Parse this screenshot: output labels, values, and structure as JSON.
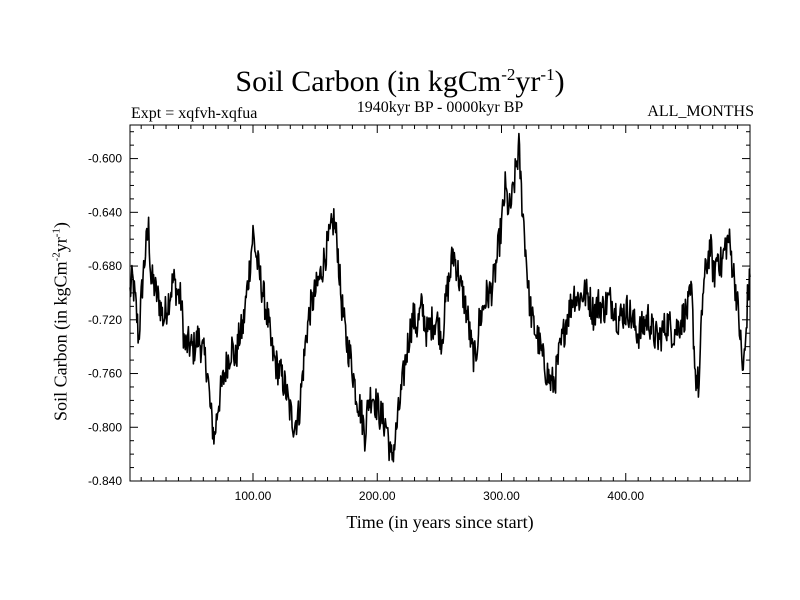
{
  "page": {
    "title_main": "Soil Carbon (in kgCm",
    "title_exp1": "-2",
    "title_mid": "yr",
    "title_exp2": "-1",
    "title_end": ")",
    "subtitle": "1940kyr BP - 0000kyr BP",
    "expt_label": "Expt = xqfvh-xqfua",
    "months_label": "ALL_MONTHS"
  },
  "chart_data": {
    "type": "line",
    "title": "Soil Carbon (in kgCm-2yr-1)",
    "xlabel": "Time (in years since start)",
    "ylabel_main": "Soil Carbon (in kgCm",
    "ylabel_exp1": "-2",
    "ylabel_mid": "yr",
    "ylabel_exp2": "-1",
    "ylabel_end": ")",
    "xlim": [
      1,
      500
    ],
    "ylim": [
      -0.84,
      -0.575
    ],
    "x_ticks": [
      100,
      200,
      300,
      400
    ],
    "x_tick_labels": [
      "100.00",
      "200.00",
      "300.00",
      "400.00"
    ],
    "y_ticks": [
      -0.84,
      -0.8,
      -0.76,
      -0.72,
      -0.68,
      -0.64,
      -0.6
    ],
    "y_tick_labels": [
      "-0.840",
      "-0.800",
      "-0.760",
      "-0.720",
      "-0.680",
      "-0.640",
      "-0.600"
    ],
    "series": [
      {
        "name": "Soil Carbon",
        "color": "#000000",
        "anchors": [
          [
            1,
            -0.7
          ],
          [
            3,
            -0.69
          ],
          [
            6,
            -0.712
          ],
          [
            8,
            -0.735
          ],
          [
            10,
            -0.705
          ],
          [
            12,
            -0.682
          ],
          [
            14,
            -0.665
          ],
          [
            16,
            -0.652
          ],
          [
            18,
            -0.69
          ],
          [
            20,
            -0.693
          ],
          [
            22,
            -0.7
          ],
          [
            25,
            -0.708
          ],
          [
            28,
            -0.72
          ],
          [
            32,
            -0.705
          ],
          [
            36,
            -0.69
          ],
          [
            39,
            -0.7
          ],
          [
            42,
            -0.705
          ],
          [
            45,
            -0.74
          ],
          [
            48,
            -0.738
          ],
          [
            52,
            -0.742
          ],
          [
            56,
            -0.733
          ],
          [
            60,
            -0.745
          ],
          [
            63,
            -0.755
          ],
          [
            66,
            -0.79
          ],
          [
            69,
            -0.808
          ],
          [
            72,
            -0.782
          ],
          [
            75,
            -0.77
          ],
          [
            79,
            -0.752
          ],
          [
            83,
            -0.74
          ],
          [
            86,
            -0.75
          ],
          [
            89,
            -0.732
          ],
          [
            92,
            -0.725
          ],
          [
            95,
            -0.7
          ],
          [
            98,
            -0.675
          ],
          [
            100,
            -0.655
          ],
          [
            103,
            -0.675
          ],
          [
            106,
            -0.69
          ],
          [
            109,
            -0.705
          ],
          [
            112,
            -0.72
          ],
          [
            115,
            -0.742
          ],
          [
            118,
            -0.752
          ],
          [
            122,
            -0.76
          ],
          [
            126,
            -0.77
          ],
          [
            129,
            -0.785
          ],
          [
            133,
            -0.798
          ],
          [
            137,
            -0.79
          ],
          [
            140,
            -0.76
          ],
          [
            143,
            -0.73
          ],
          [
            146,
            -0.712
          ],
          [
            150,
            -0.7
          ],
          [
            154,
            -0.688
          ],
          [
            158,
            -0.672
          ],
          [
            162,
            -0.658
          ],
          [
            165,
            -0.645
          ],
          [
            168,
            -0.665
          ],
          [
            171,
            -0.705
          ],
          [
            175,
            -0.735
          ],
          [
            179,
            -0.75
          ],
          [
            183,
            -0.775
          ],
          [
            187,
            -0.788
          ],
          [
            190,
            -0.805
          ],
          [
            193,
            -0.78
          ],
          [
            196,
            -0.775
          ],
          [
            199,
            -0.782
          ],
          [
            202,
            -0.79
          ],
          [
            205,
            -0.795
          ],
          [
            208,
            -0.8
          ],
          [
            211,
            -0.825
          ],
          [
            214,
            -0.812
          ],
          [
            217,
            -0.79
          ],
          [
            220,
            -0.77
          ],
          [
            223,
            -0.748
          ],
          [
            226,
            -0.73
          ],
          [
            229,
            -0.718
          ],
          [
            232,
            -0.725
          ],
          [
            236,
            -0.71
          ],
          [
            240,
            -0.73
          ],
          [
            244,
            -0.722
          ],
          [
            248,
            -0.72
          ],
          [
            252,
            -0.735
          ],
          [
            256,
            -0.7
          ],
          [
            258,
            -0.69
          ],
          [
            261,
            -0.67
          ],
          [
            264,
            -0.68
          ],
          [
            267,
            -0.695
          ],
          [
            270,
            -0.705
          ],
          [
            273,
            -0.72
          ],
          [
            276,
            -0.742
          ],
          [
            279,
            -0.75
          ],
          [
            282,
            -0.722
          ],
          [
            285,
            -0.712
          ],
          [
            288,
            -0.702
          ],
          [
            291,
            -0.7
          ],
          [
            294,
            -0.69
          ],
          [
            297,
            -0.67
          ],
          [
            300,
            -0.65
          ],
          [
            303,
            -0.622
          ],
          [
            306,
            -0.64
          ],
          [
            309,
            -0.628
          ],
          [
            312,
            -0.605
          ],
          [
            314,
            -0.592
          ],
          [
            316,
            -0.625
          ],
          [
            319,
            -0.662
          ],
          [
            322,
            -0.702
          ],
          [
            325,
            -0.722
          ],
          [
            328,
            -0.73
          ],
          [
            331,
            -0.74
          ],
          [
            334,
            -0.752
          ],
          [
            337,
            -0.76
          ],
          [
            340,
            -0.768
          ],
          [
            343,
            -0.765
          ],
          [
            346,
            -0.748
          ],
          [
            349,
            -0.735
          ],
          [
            352,
            -0.72
          ],
          [
            355,
            -0.712
          ],
          [
            358,
            -0.7
          ],
          [
            362,
            -0.705
          ],
          [
            366,
            -0.7
          ],
          [
            370,
            -0.702
          ],
          [
            374,
            -0.715
          ],
          [
            378,
            -0.708
          ],
          [
            382,
            -0.712
          ],
          [
            386,
            -0.705
          ],
          [
            390,
            -0.708
          ],
          [
            394,
            -0.72
          ],
          [
            398,
            -0.715
          ],
          [
            402,
            -0.712
          ],
          [
            406,
            -0.722
          ],
          [
            410,
            -0.73
          ],
          [
            414,
            -0.725
          ],
          [
            418,
            -0.718
          ],
          [
            422,
            -0.73
          ],
          [
            426,
            -0.735
          ],
          [
            430,
            -0.728
          ],
          [
            434,
            -0.722
          ],
          [
            438,
            -0.73
          ],
          [
            442,
            -0.725
          ],
          [
            446,
            -0.718
          ],
          [
            450,
            -0.712
          ],
          [
            453,
            -0.7
          ],
          [
            456,
            -0.76
          ],
          [
            459,
            -0.77
          ],
          [
            462,
            -0.7
          ],
          [
            465,
            -0.68
          ],
          [
            468,
            -0.665
          ],
          [
            471,
            -0.688
          ],
          [
            474,
            -0.67
          ],
          [
            477,
            -0.68
          ],
          [
            480,
            -0.665
          ],
          [
            483,
            -0.66
          ],
          [
            486,
            -0.68
          ],
          [
            489,
            -0.7
          ],
          [
            492,
            -0.73
          ],
          [
            494,
            -0.758
          ],
          [
            496,
            -0.745
          ],
          [
            498,
            -0.705
          ],
          [
            500,
            -0.69
          ]
        ],
        "noise_amplitude": 0.013
      }
    ]
  }
}
